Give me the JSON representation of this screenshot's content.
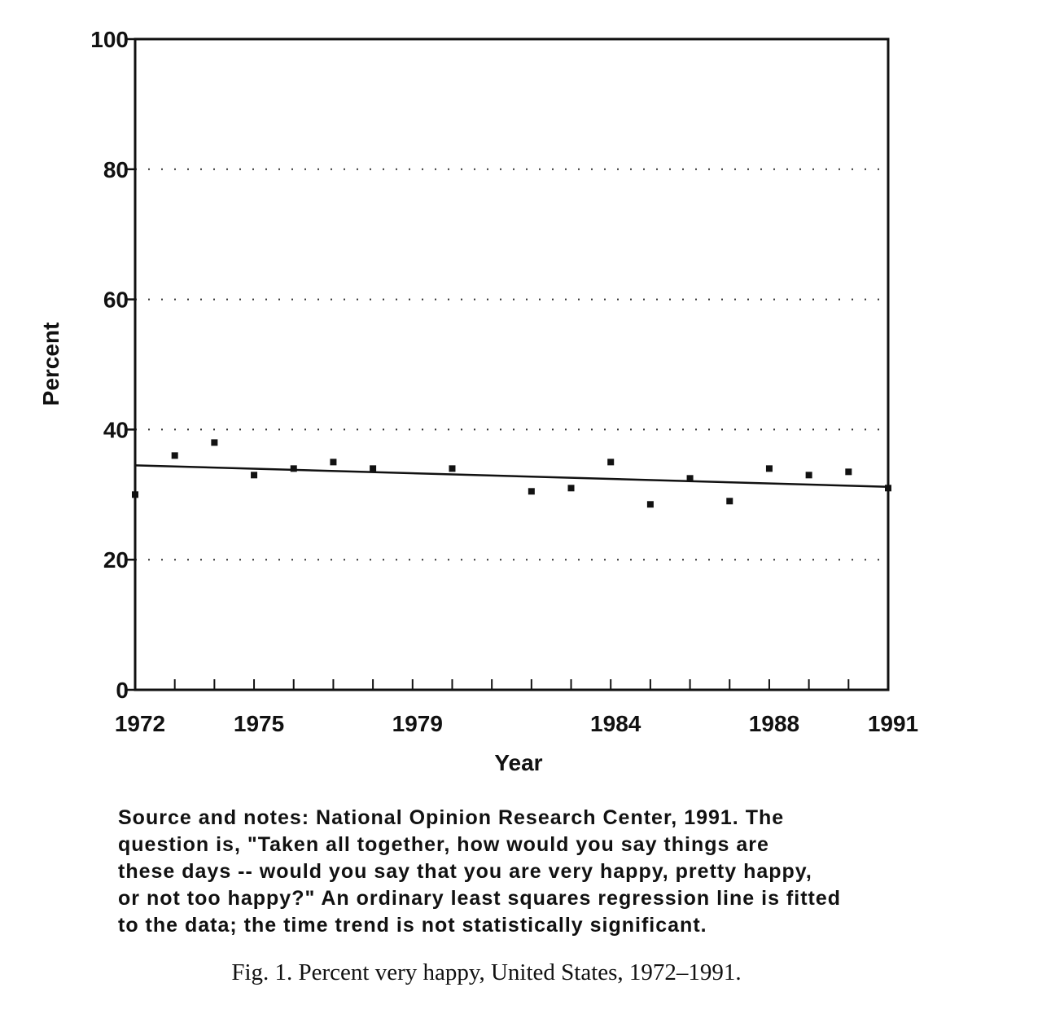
{
  "chart_data": {
    "type": "scatter",
    "ylabel": "Percent",
    "xlabel": "Year",
    "ylim": [
      0,
      100
    ],
    "xlim": [
      1972,
      1991
    ],
    "y_ticks": [
      0,
      20,
      40,
      60,
      80,
      100
    ],
    "x_tick_labels": [
      1972,
      1975,
      1979,
      1984,
      1988,
      1991
    ],
    "x_minor_ticks": [
      1973,
      1974,
      1975,
      1976,
      1977,
      1978,
      1979,
      1980,
      1981,
      1982,
      1983,
      1984,
      1985,
      1986,
      1987,
      1988,
      1989,
      1990
    ],
    "grid": "horizontal dotted",
    "series": [
      {
        "type": "scatter",
        "x": [
          1972,
          1973,
          1974,
          1975,
          1976,
          1977,
          1978,
          1980,
          1982,
          1983,
          1984,
          1985,
          1986,
          1987,
          1988,
          1989,
          1990,
          1991
        ],
        "y": [
          30,
          36,
          38,
          33,
          34,
          35,
          34,
          34,
          30.5,
          31,
          35,
          28.5,
          32.5,
          29,
          34,
          33,
          33.5,
          31
        ]
      },
      {
        "type": "line",
        "x": [
          1972,
          1991
        ],
        "y": [
          34.5,
          31.2
        ]
      }
    ]
  },
  "notes": "Source and notes: National Opinion Research Center, 1991.  The\nquestion is, \"Taken all together, how would you say things are\nthese days -- would you say that you are very happy, pretty happy,\nor not too happy?\" An ordinary least squares regression line is fitted\nto the data; the time trend is not statistically significant.",
  "caption": "Fig. 1. Percent very happy, United States, 1972–1991."
}
